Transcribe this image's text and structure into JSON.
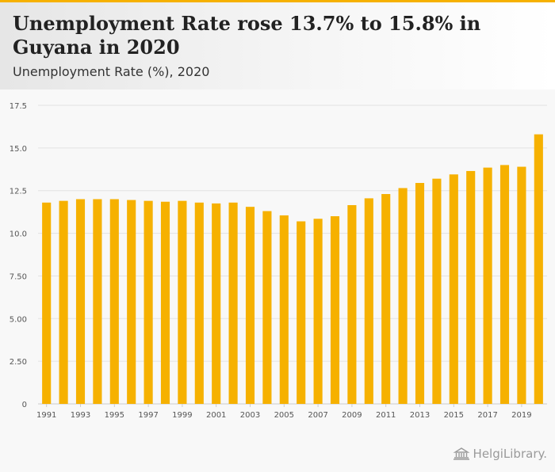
{
  "header": {
    "title": "Unemployment Rate rose 13.7% to 15.8% in Guyana in 2020",
    "subtitle": "Unemployment Rate (%), 2020"
  },
  "logo": {
    "brand": "HelgiLibrary."
  },
  "colors": {
    "bar": "#F6B100",
    "grid": "#e2e2e2",
    "axis_text": "#555555"
  },
  "chart_data": {
    "type": "bar",
    "title": "Unemployment Rate rose 13.7% to 15.8% in Guyana in 2020",
    "subtitle": "Unemployment Rate (%), 2020",
    "xlabel": "",
    "ylabel": "",
    "ylim": [
      0,
      17.5
    ],
    "yticks": [
      0,
      2.5,
      5,
      7.5,
      10,
      12.5,
      15,
      17.5
    ],
    "ytick_labels": [
      "0",
      "2.50",
      "5.00",
      "7.50",
      "10.0",
      "12.5",
      "15.0",
      "17.5"
    ],
    "grid": true,
    "categories": [
      1991,
      1992,
      1993,
      1994,
      1995,
      1996,
      1997,
      1998,
      1999,
      2000,
      2001,
      2002,
      2003,
      2004,
      2005,
      2006,
      2007,
      2008,
      2009,
      2010,
      2011,
      2012,
      2013,
      2014,
      2015,
      2016,
      2017,
      2018,
      2019,
      2020
    ],
    "xtick_labels": [
      "1991",
      "1993",
      "1995",
      "1997",
      "1999",
      "2001",
      "2003",
      "2005",
      "2007",
      "2009",
      "2011",
      "2013",
      "2015",
      "2017",
      "2019"
    ],
    "series": [
      {
        "name": "Unemployment Rate (%)",
        "values": [
          11.8,
          11.9,
          12.0,
          12.0,
          12.0,
          11.95,
          11.9,
          11.85,
          11.9,
          11.8,
          11.75,
          11.8,
          11.55,
          11.3,
          11.05,
          10.7,
          10.85,
          11.0,
          11.65,
          12.05,
          12.3,
          12.65,
          12.95,
          13.2,
          13.45,
          13.65,
          13.85,
          14.0,
          13.9,
          15.8
        ]
      }
    ]
  }
}
